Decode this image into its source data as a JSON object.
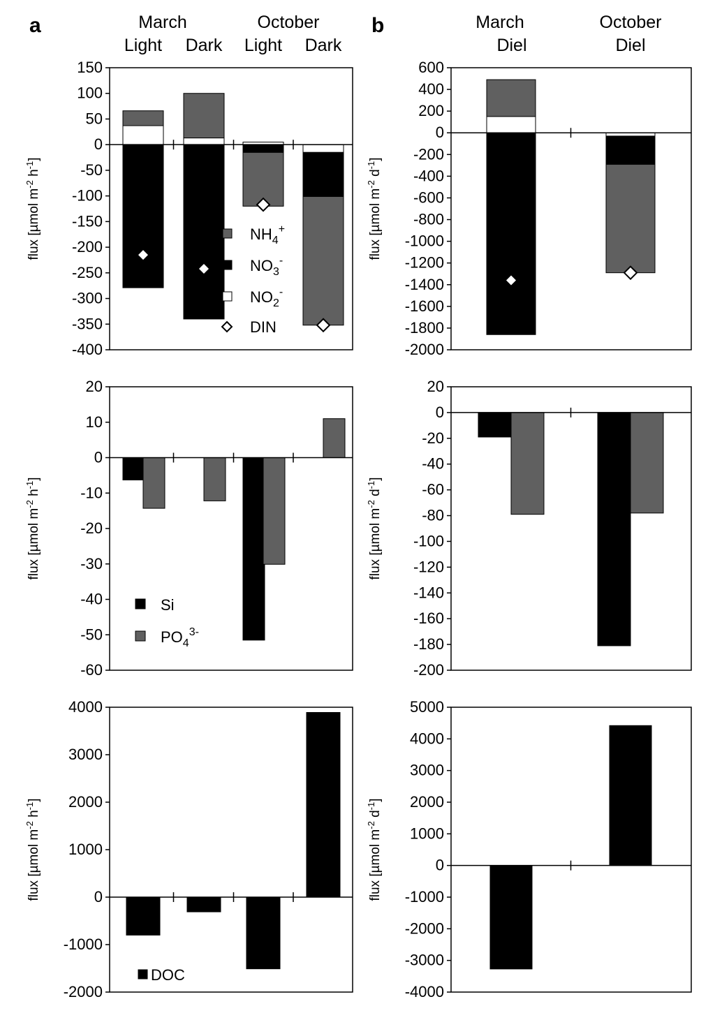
{
  "panel_labels": {
    "a": "a",
    "b": "b"
  },
  "headers": {
    "a": {
      "march": "March",
      "october": "October",
      "light1": "Light",
      "dark1": "Dark",
      "light2": "Light",
      "dark2": "Dark"
    },
    "b": {
      "march": "March",
      "october": "October",
      "diel1": "Diel",
      "diel2": "Diel"
    }
  },
  "colors": {
    "nh4": "#606060",
    "no3": "#000000",
    "no2": "#ffffff",
    "po4": "#606060",
    "si": "#000000",
    "doc": "#000000"
  },
  "chart_data": [
    {
      "id": "a1",
      "type": "bar",
      "stacked": true,
      "units": "h",
      "categories": [
        "March Light",
        "March Dark",
        "October Light",
        "October Dark"
      ],
      "ylim": [
        -400,
        150
      ],
      "yticks": [
        150,
        100,
        50,
        0,
        -50,
        -100,
        -150,
        -200,
        -250,
        -300,
        -350,
        -400
      ],
      "series": [
        {
          "name": "NH4+",
          "segments": [
            [
              37,
              66
            ],
            [
              13,
              100
            ],
            [
              -15,
              -120
            ],
            [
              -101,
              -352
            ]
          ]
        },
        {
          "name": "NO3-",
          "segments": [
            [
              0,
              -279
            ],
            [
              0,
              -340
            ],
            [
              0,
              -15
            ],
            [
              -15,
              -101
            ]
          ]
        },
        {
          "name": "NO2-",
          "segments": [
            [
              0,
              37
            ],
            [
              0,
              13
            ],
            [
              0,
              5
            ],
            [
              0,
              -15
            ]
          ]
        }
      ],
      "din": [
        -215,
        -242,
        -117,
        -352
      ],
      "legend": [
        {
          "key": "nh4",
          "label": "NH",
          "sub": "4",
          "sup": "+"
        },
        {
          "key": "no3",
          "label": "NO",
          "sub": "3",
          "sup": "-"
        },
        {
          "key": "no2",
          "label": "NO",
          "sub": "2",
          "sup": "-"
        },
        {
          "key": "din",
          "label": "DIN",
          "sub": "",
          "sup": ""
        }
      ]
    },
    {
      "id": "b1",
      "type": "bar",
      "stacked": true,
      "units": "d",
      "categories": [
        "March Diel",
        "October Diel"
      ],
      "ylim": [
        -2000,
        600
      ],
      "yticks": [
        600,
        400,
        200,
        0,
        -200,
        -400,
        -600,
        -800,
        -1000,
        -1200,
        -1400,
        -1600,
        -1800,
        -2000
      ],
      "series": [
        {
          "name": "NH4+",
          "segments": [
            [
              150,
              490
            ],
            [
              -290,
              -1290
            ]
          ]
        },
        {
          "name": "NO3-",
          "segments": [
            [
              0,
              -1860
            ],
            [
              -30,
              -290
            ]
          ]
        },
        {
          "name": "NO2-",
          "segments": [
            [
              0,
              150
            ],
            [
              0,
              -30
            ]
          ]
        }
      ],
      "din": [
        -1360,
        -1290
      ]
    },
    {
      "id": "a2",
      "type": "bar",
      "units": "h",
      "categories": [
        "March Light",
        "March Dark",
        "October Light",
        "October Dark"
      ],
      "ylim": [
        -60,
        20
      ],
      "yticks": [
        20,
        10,
        0,
        -10,
        -20,
        -30,
        -40,
        -50,
        -60
      ],
      "series": [
        {
          "name": "Si",
          "values": [
            -6.3,
            0,
            -51.5,
            0
          ]
        },
        {
          "name": "PO4 3-",
          "values": [
            -14.3,
            -12.2,
            -30.1,
            11.0
          ]
        }
      ],
      "legend": [
        {
          "key": "si",
          "label": "Si",
          "sub": "",
          "sup": ""
        },
        {
          "key": "po4",
          "label": "PO",
          "sub": "4",
          "sup": "3-"
        }
      ]
    },
    {
      "id": "b2",
      "type": "bar",
      "units": "d",
      "categories": [
        "March Diel",
        "October Diel"
      ],
      "ylim": [
        -200,
        20
      ],
      "yticks": [
        20,
        0,
        -20,
        -40,
        -60,
        -80,
        -100,
        -120,
        -140,
        -160,
        -180,
        -200
      ],
      "series": [
        {
          "name": "Si",
          "values": [
            -19,
            -181
          ]
        },
        {
          "name": "PO4 3-",
          "values": [
            -79,
            -78
          ]
        }
      ]
    },
    {
      "id": "a3",
      "type": "bar",
      "units": "h",
      "categories": [
        "March Light",
        "March Dark",
        "October Light",
        "October Dark"
      ],
      "ylim": [
        -2000,
        4000
      ],
      "yticks": [
        4000,
        3000,
        2000,
        1000,
        0,
        -1000,
        -2000
      ],
      "series": [
        {
          "name": "DOC",
          "values": [
            -800,
            -310,
            -1510,
            3890
          ]
        }
      ],
      "legend": [
        {
          "key": "doc",
          "label": "DOC",
          "sub": "",
          "sup": ""
        }
      ]
    },
    {
      "id": "b3",
      "type": "bar",
      "units": "d",
      "categories": [
        "March Diel",
        "October Diel"
      ],
      "ylim": [
        -4000,
        5000
      ],
      "yticks": [
        5000,
        4000,
        3000,
        2000,
        1000,
        0,
        -1000,
        -2000,
        -3000,
        -4000
      ],
      "series": [
        {
          "name": "DOC",
          "values": [
            -3270,
            4420
          ]
        }
      ]
    }
  ],
  "ylabels": {
    "h_pre": "flux [µmol m",
    "h_mid": " h",
    "d_mid": " d",
    "sup_m": "-2",
    "sup_t": "-1",
    "post": "]"
  }
}
